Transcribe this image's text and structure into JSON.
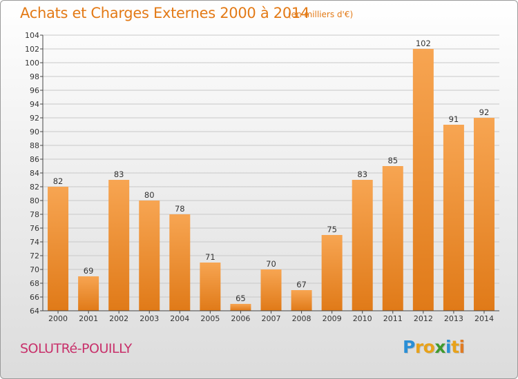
{
  "header": {
    "title": "Achats et Charges Externes 2000 à 2014",
    "subtitle": "(en milliers d'€)"
  },
  "footer": {
    "commune": "SOLUTRé-POUILLY",
    "logo_letters": [
      {
        "ch": "P",
        "color": "#2a8fd6"
      },
      {
        "ch": "r",
        "color": "#e8a21a"
      },
      {
        "ch": "o",
        "color": "#e8a21a"
      },
      {
        "ch": "x",
        "color": "#3f9a2e"
      },
      {
        "ch": "i",
        "color": "#2a8fd6"
      },
      {
        "ch": "t",
        "color": "#e8a21a"
      },
      {
        "ch": "i",
        "color": "#e07b23"
      }
    ]
  },
  "colors": {
    "bar_light": "#f7a552",
    "bar_dark": "#e07a18",
    "grid": "#c8c8c8",
    "axis": "#444444",
    "title": "#e37a16",
    "commune": "#c8306a"
  },
  "chart_data": {
    "type": "bar",
    "title": "Achats et Charges Externes 2000 à 2014",
    "subtitle": "(en milliers d'€)",
    "xlabel": "",
    "ylabel": "",
    "categories": [
      "2000",
      "2001",
      "2002",
      "2003",
      "2004",
      "2005",
      "2006",
      "2007",
      "2008",
      "2009",
      "2010",
      "2011",
      "2012",
      "2013",
      "2014"
    ],
    "values": [
      82,
      69,
      83,
      80,
      78,
      71,
      65,
      70,
      67,
      75,
      83,
      85,
      102,
      91,
      92
    ],
    "ylim": [
      64,
      104
    ],
    "yticks": [
      64,
      66,
      68,
      70,
      72,
      74,
      76,
      78,
      80,
      82,
      84,
      86,
      88,
      90,
      92,
      94,
      96,
      98,
      100,
      102,
      104
    ],
    "grid": true,
    "data_labels": true,
    "legend": "none"
  }
}
